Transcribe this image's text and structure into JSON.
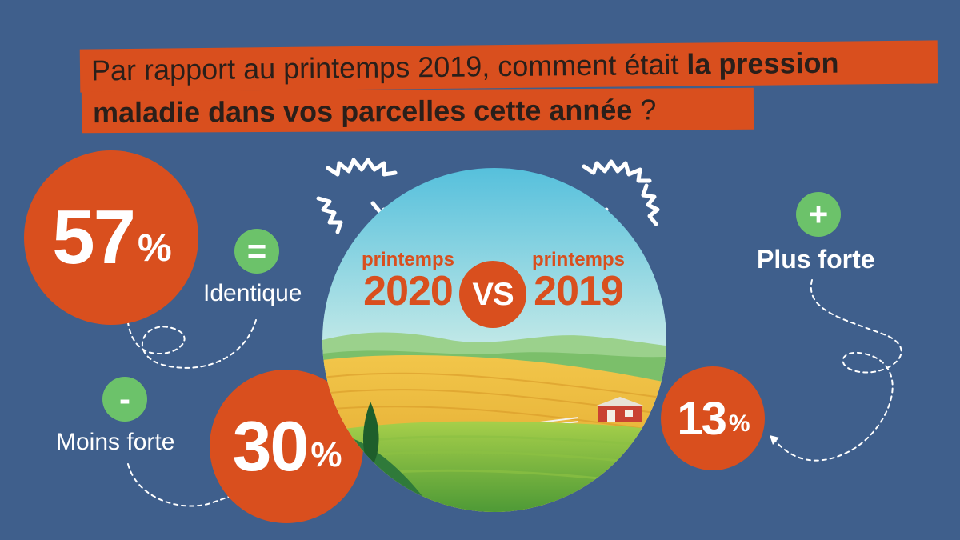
{
  "title": {
    "line1_regular": "Par rapport au printemps 2019, comment était ",
    "line1_bold": "la pression",
    "line2_bold": "maladie dans vos parcelles cette année",
    "line2_regular": " ?"
  },
  "comparison": {
    "left_small": "printemps",
    "left_year": "2020",
    "vs": "VS",
    "right_small": "printemps",
    "right_year": "2019"
  },
  "results": [
    {
      "key": "identique",
      "value": "57",
      "unit": "%",
      "sign": "=",
      "label": "Identique"
    },
    {
      "key": "moins",
      "value": "30",
      "unit": "%",
      "sign": "-",
      "label": "Moins forte"
    },
    {
      "key": "plus",
      "value": "13",
      "unit": "%",
      "sign": "+",
      "label": "Plus forte"
    }
  ],
  "colors": {
    "background": "#3f5f8c",
    "accent": "#d94f1e",
    "green": "#6cc26a",
    "white": "#ffffff"
  },
  "icons": [
    "equals-icon",
    "minus-icon",
    "plus-icon",
    "sparkle-burst-icon"
  ]
}
